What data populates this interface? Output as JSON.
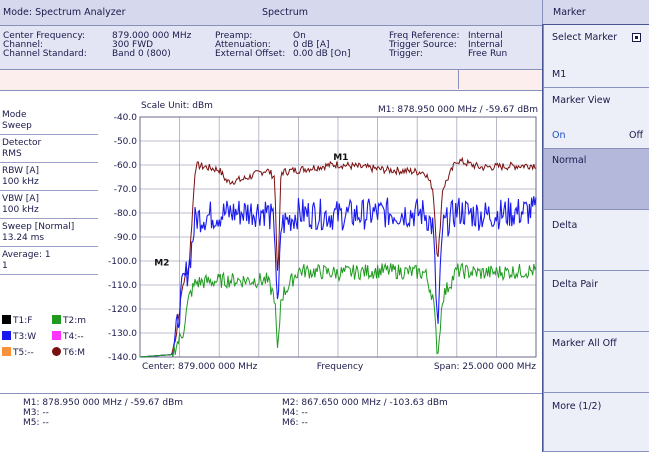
{
  "header": {
    "mode_label": "Mode: Spectrum Analyzer",
    "title": "Spectrum"
  },
  "params": {
    "center_frequency_label": "Center Frequency:",
    "center_frequency_value": "879.000 000 MHz",
    "channel_label": "Channel:",
    "channel_value": "300 FWD",
    "channel_standard_label": "Channel Standard:",
    "channel_standard_value": "Band 0 (800)",
    "preamp_label": "Preamp:",
    "preamp_value": "On",
    "attenuation_label": "Attenuation:",
    "attenuation_value": "0 dB [A]",
    "external_offset_label": "External Offset:",
    "external_offset_value": "0.00 dB [On]",
    "freq_reference_label": "Freq Reference:",
    "freq_reference_value": "Internal",
    "trigger_source_label": "Trigger Source:",
    "trigger_source_value": "Internal",
    "trigger_label": "Trigger:",
    "trigger_value": "Free Run"
  },
  "left_panel": {
    "mode_label": "Mode",
    "mode_value": "Sweep",
    "detector_label": "Detector",
    "detector_value": "RMS",
    "rbw_label": "RBW [A]",
    "rbw_value": "100 kHz",
    "vbw_label": "VBW [A]",
    "vbw_value": "100 kHz",
    "sweep_label": "Sweep [Normal]",
    "sweep_value": "13.24 ms",
    "average_label": "Average: 1",
    "average_value": "1"
  },
  "traces_legend": [
    {
      "label": "T1:F",
      "color": "#000000"
    },
    {
      "label": "T2:m",
      "color": "#1f9a1f"
    },
    {
      "label": "T3:W",
      "color": "#1a1aee"
    },
    {
      "label": "T4:--",
      "color": "#ff33ff"
    },
    {
      "label": "T5:--",
      "color": "#f7913a"
    },
    {
      "label": "T6:M",
      "color": "#7a1010"
    }
  ],
  "plot": {
    "scale_unit": "Scale Unit: dBm",
    "marker_readout": "M1:  878.950 000 MHz / -59.67 dBm",
    "center_label": "Center: 879.000 000 MHz",
    "x_label": "Frequency",
    "span_label": "Span: 25.000 000 MHz",
    "y_ticks": [
      "-40.0",
      "-50.0",
      "-60.0",
      "-70.0",
      "-80.0",
      "-90.0",
      "-100.0",
      "-110.0",
      "-120.0",
      "-130.0",
      "-140.0"
    ],
    "m1_label": "M1",
    "m2_label": "M2"
  },
  "chart_data": {
    "type": "line",
    "xlabel": "Frequency",
    "ylabel": "Scale Unit: dBm",
    "x_center_mhz": 879.0,
    "span_mhz": 25.0,
    "ylim": [
      -140,
      -40
    ],
    "grid": true,
    "series": [
      {
        "name": "T6:M",
        "color": "#7a1010",
        "x": [
          866.5,
          868.5,
          868.8,
          869.2,
          869.6,
          870.0,
          871.5,
          872.0,
          873.0,
          874.5,
          875.0,
          875.2,
          875.4,
          876.5,
          878.9,
          882.0,
          884.5,
          885.0,
          885.3,
          885.6,
          886.5,
          888.0,
          891.5
        ],
        "y": [
          -140,
          -139,
          -130,
          -110,
          -102,
          -60,
          -62,
          -67,
          -66,
          -62,
          -65,
          -110,
          -63,
          -62,
          -59.7,
          -62,
          -63,
          -70,
          -101,
          -70,
          -58,
          -61,
          -60
        ]
      },
      {
        "name": "T3:W",
        "color": "#1a1aee",
        "x": [
          866.5,
          868.5,
          868.8,
          869.2,
          869.6,
          870.0,
          872.0,
          874.5,
          875.0,
          875.2,
          875.4,
          876.5,
          879.0,
          882.0,
          884.5,
          885.0,
          885.3,
          885.6,
          886.5,
          888.0,
          891.5
        ],
        "y": [
          -140,
          -139,
          -130,
          -110,
          -102,
          -82,
          -80,
          -79,
          -85,
          -125,
          -85,
          -80,
          -81,
          -80,
          -80,
          -86,
          -130,
          -86,
          -79,
          -81,
          -79
        ]
      },
      {
        "name": "T2:m",
        "color": "#1f9a1f",
        "x": [
          866.5,
          868.5,
          868.8,
          869.2,
          869.6,
          870.0,
          872.0,
          874.5,
          875.0,
          875.2,
          875.4,
          876.5,
          879.0,
          882.0,
          884.5,
          885.0,
          885.3,
          885.6,
          886.5,
          888.0,
          891.5
        ],
        "y": [
          -140,
          -139,
          -135,
          -130,
          -115,
          -109,
          -108,
          -108,
          -115,
          -140,
          -115,
          -104,
          -105,
          -104,
          -105,
          -115,
          -140,
          -115,
          -104,
          -105,
          -104
        ]
      }
    ]
  },
  "markers": {
    "m1": "M1: 878.950 000 MHz / -59.67 dBm",
    "m2": "M2: 867.650 000 MHz / -103.63 dBm",
    "m3": "M3: --",
    "m4": "M4: --",
    "m5": "M5: --",
    "m6": "M6: --"
  },
  "sidebar": {
    "title": "Marker",
    "select_marker_label": "Select Marker",
    "select_marker_value": "M1",
    "marker_view_label": "Marker View",
    "marker_view_on": "On",
    "marker_view_off": "Off",
    "normal_label": "Normal",
    "delta_label": "Delta",
    "delta_pair_label": "Delta Pair",
    "marker_all_off_label": "Marker All Off",
    "more_label": "More (1/2)"
  }
}
